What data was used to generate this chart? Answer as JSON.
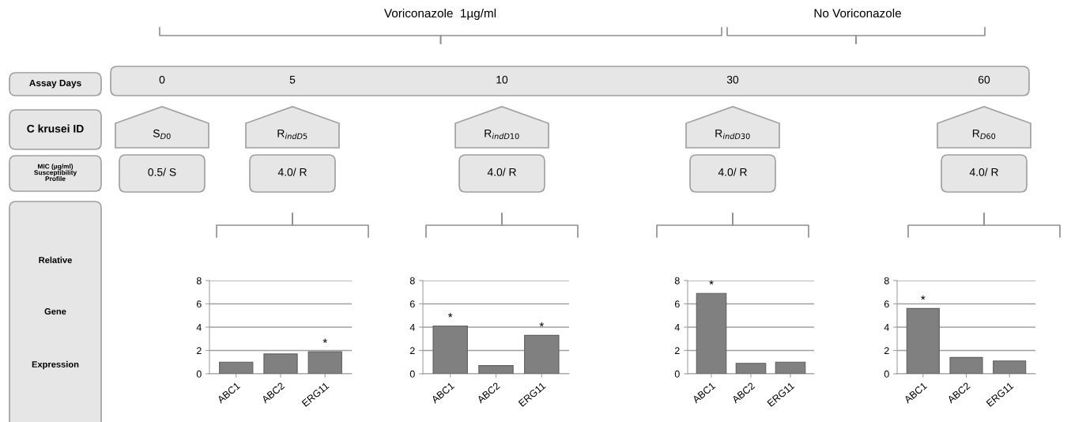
{
  "chart_data": [
    {
      "type": "other",
      "title": "Voriconazole  1µg/ml",
      "annotations": [
        "No Voriconazole",
        "Assay Days",
        "0",
        "5",
        "10",
        "30",
        "60",
        "C krusei ID",
        "S$_{D0}$",
        "R$_{indD5}$",
        "R$_{indD10}$",
        "R$_{indD30}$",
        "R$_{D60}$",
        "MIC (µg/ml) Susceptibility Profile",
        "0.5/ S",
        "4.0/ R",
        "4.0/ R",
        "4.0/ R",
        "4.0/ R",
        "Relative",
        "Gene",
        "Expression"
      ]
    },
    {
      "type": "bar",
      "categories": [
        "ABC1",
        "ABC2",
        "ERG11"
      ],
      "values": [
        1.0,
        1.7,
        1.9
      ],
      "value_labels": [
        null,
        null,
        "*"
      ],
      "color": "#808080",
      "ylim": [
        0,
        8
      ],
      "yticks": [
        0,
        2,
        4,
        6,
        8
      ],
      "grid": "y"
    },
    {
      "type": "bar",
      "categories": [
        "ABC1",
        "ABC2",
        "ERG11"
      ],
      "values": [
        4.1,
        0.7,
        3.3
      ],
      "value_labels": [
        "*",
        null,
        "*"
      ],
      "color": "#808080",
      "ylim": [
        0,
        8
      ],
      "yticks": [
        0,
        2,
        4,
        6,
        8
      ],
      "grid": "y"
    },
    {
      "type": "bar",
      "categories": [
        "ABC1",
        "ABC2",
        "ERG11"
      ],
      "values": [
        6.9,
        0.9,
        1.0
      ],
      "value_labels": [
        "*",
        null,
        null
      ],
      "color": "#808080",
      "ylim": [
        0,
        8
      ],
      "yticks": [
        0,
        2,
        4,
        6,
        8
      ],
      "grid": "y"
    },
    {
      "type": "bar",
      "categories": [
        "ABC1",
        "ABC2",
        "ERG11"
      ],
      "values": [
        5.6,
        1.4,
        1.1
      ],
      "value_labels": [
        "*",
        null,
        null
      ],
      "color": "#808080",
      "ylim": [
        0,
        8
      ],
      "yticks": [
        0,
        2,
        4,
        6,
        8
      ],
      "grid": "y"
    }
  ]
}
